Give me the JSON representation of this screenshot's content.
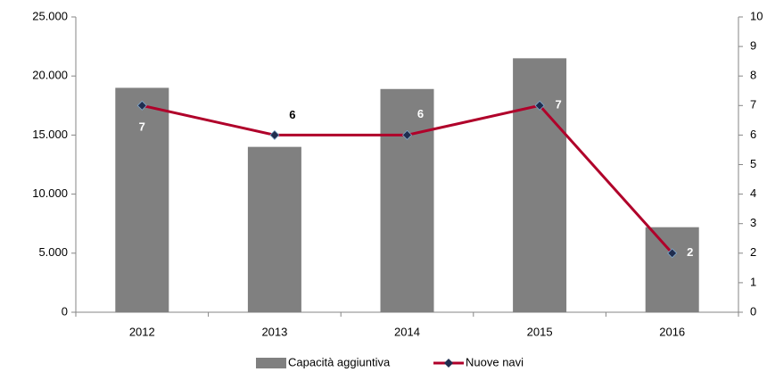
{
  "chart_data": {
    "type": "bar_line",
    "categories": [
      "2012",
      "2013",
      "2014",
      "2015",
      "2016"
    ],
    "series": [
      {
        "name": "Capacità aggiuntiva",
        "type": "bar",
        "color": "#808080",
        "values": [
          19000,
          14000,
          18900,
          21500,
          7200
        ]
      },
      {
        "name": "Nuove navi",
        "type": "line",
        "axis": "y2",
        "color": "#b0002a",
        "marker_color": "#1f2d4f",
        "values": [
          7,
          6,
          6,
          7,
          2
        ]
      }
    ],
    "ylim": [
      0,
      25000
    ],
    "yticks": [
      0,
      {
        "value": 5000,
        "label": "5.000"
      },
      {
        "value": 10000,
        "label": "10.000"
      },
      {
        "value": 15000,
        "label": "15.000"
      },
      {
        "value": 20000,
        "label": "20.000"
      },
      {
        "value": 25000,
        "label": "25.000"
      }
    ],
    "y2lim": [
      0,
      10
    ],
    "y2ticks": [
      0,
      1,
      2,
      3,
      4,
      5,
      6,
      7,
      8,
      9,
      10
    ],
    "grid": false,
    "legend": "bottom"
  }
}
